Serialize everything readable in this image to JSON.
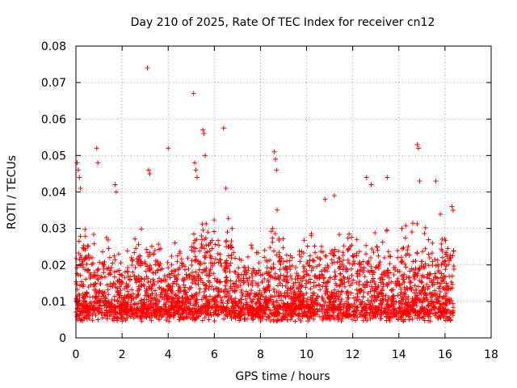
{
  "chart_data": {
    "type": "scatter",
    "title": "Day 210 of 2025, Rate Of TEC Index for receiver cn12",
    "xlabel": "GPS time / hours",
    "ylabel": "ROTI / TECUs",
    "xlim": [
      0,
      18
    ],
    "ylim": [
      0,
      0.08
    ],
    "xticks": [
      "0",
      "2",
      "4",
      "6",
      "8",
      "10",
      "12",
      "14",
      "16",
      "18"
    ],
    "yticks": [
      "0",
      "0.01",
      "0.02",
      "0.03",
      "0.04",
      "0.05",
      "0.06",
      "0.07",
      "0.08"
    ],
    "grid": true,
    "marker": "plus",
    "color": "#ff0000",
    "data_range_hours": [
      0,
      16.4
    ],
    "series": [
      {
        "x": [
          0.05,
          0.1,
          0.15,
          0.2,
          0.9,
          0.95,
          1.7,
          1.75,
          3.1,
          3.15,
          3.2,
          4.0,
          5.1,
          5.15,
          5.2,
          5.25,
          5.5,
          5.55,
          5.6,
          6.4,
          6.5,
          8.6,
          8.65,
          8.7,
          10.8,
          11.2,
          12.6,
          12.8,
          13.5,
          14.8,
          14.85,
          14.9,
          15.6,
          16.3,
          16.35
        ],
        "y": [
          0.048,
          0.046,
          0.044,
          0.041,
          0.052,
          0.048,
          0.042,
          0.04,
          0.074,
          0.046,
          0.045,
          0.052,
          0.067,
          0.048,
          0.046,
          0.044,
          0.057,
          0.056,
          0.05,
          0.0575,
          0.041,
          0.051,
          0.049,
          0.046,
          0.038,
          0.039,
          0.044,
          0.042,
          0.044,
          0.053,
          0.052,
          0.043,
          0.043,
          0.036,
          0.035
        ]
      }
    ]
  }
}
